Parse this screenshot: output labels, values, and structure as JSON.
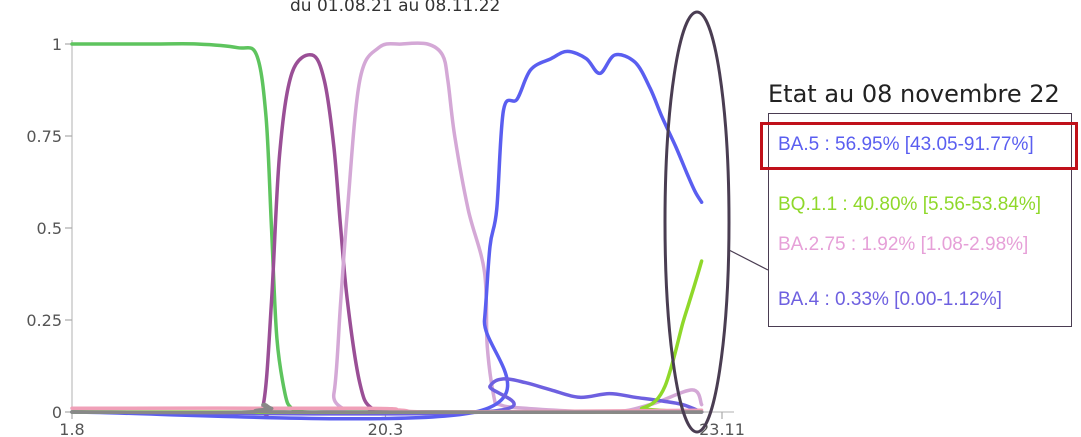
{
  "chart_data": {
    "type": "line",
    "title": "",
    "subtitle": "du 01.08.21 au 08.11.22",
    "xlabel": "",
    "ylabel": "",
    "x_ticks": [
      "1.8",
      "20.3",
      "23.11"
    ],
    "y_ticks": [
      "0",
      "0.25",
      "0.5",
      "0.75",
      "1"
    ],
    "ylim": [
      0,
      1
    ],
    "xlim": [
      "2021-08-01",
      "2022-11-23"
    ],
    "grid": false,
    "series": [
      {
        "color": "#5ec45e",
        "x": [
          "2021-08-01",
          "2021-09-01",
          "2021-10-01",
          "2021-11-01",
          "2021-12-01",
          "2021-12-15",
          "2021-12-22",
          "2021-12-26",
          "2021-12-30",
          "2022-01-05",
          "2022-01-10",
          "2022-01-20",
          "2022-02-10",
          "2022-03-20",
          "2022-06-01",
          "2022-09-01",
          "2022-11-08"
        ],
        "y": [
          1,
          1,
          1,
          1,
          0.99,
          0.97,
          0.8,
          0.5,
          0.2,
          0.05,
          0.01,
          0,
          0,
          0,
          0,
          0,
          0
        ]
      },
      {
        "color": "#9a4f96",
        "x": [
          "2021-08-01",
          "2021-12-10",
          "2021-12-20",
          "2021-12-26",
          "2022-01-01",
          "2022-01-10",
          "2022-01-25",
          "2022-02-03",
          "2022-02-10",
          "2022-02-15",
          "2022-02-20",
          "2022-03-01",
          "2022-03-10",
          "2022-04-01",
          "2022-11-08"
        ],
        "y": [
          0,
          0,
          0.02,
          0.3,
          0.7,
          0.92,
          0.97,
          0.9,
          0.72,
          0.5,
          0.3,
          0.08,
          0.01,
          0,
          0
        ]
      },
      {
        "color": "#d4a8d6",
        "x": [
          "2021-08-01",
          "2022-02-01",
          "2022-02-10",
          "2022-02-15",
          "2022-02-20",
          "2022-03-01",
          "2022-03-15",
          "2022-04-01",
          "2022-04-20",
          "2022-05-01",
          "2022-05-05",
          "2022-05-10",
          "2022-05-20",
          "2022-06-01",
          "2022-06-03",
          "2022-06-08",
          "2022-06-12",
          "2022-07-01",
          "2022-09-01",
          "2022-10-01",
          "2022-11-01",
          "2022-11-08"
        ],
        "y": [
          0,
          0,
          0.05,
          0.3,
          0.55,
          0.9,
          0.99,
          1,
          1,
          0.97,
          0.9,
          0.75,
          0.55,
          0.38,
          0.18,
          0.04,
          0.02,
          0.01,
          0,
          0.02,
          0.06,
          0.02
        ]
      },
      {
        "color": "#5a5ef0",
        "x": [
          "2021-08-01",
          "2022-05-25",
          "2022-06-01",
          "2022-06-05",
          "2022-06-10",
          "2022-06-15",
          "2022-06-25",
          "2022-07-05",
          "2022-07-20",
          "2022-08-01",
          "2022-08-15",
          "2022-08-25",
          "2022-09-05",
          "2022-09-20",
          "2022-10-01",
          "2022-10-10",
          "2022-10-20",
          "2022-10-28",
          "2022-11-03",
          "2022-11-08"
        ],
        "y": [
          0,
          0,
          0.25,
          0.45,
          0.55,
          0.82,
          0.85,
          0.93,
          0.96,
          0.98,
          0.96,
          0.92,
          0.97,
          0.95,
          0.88,
          0.8,
          0.72,
          0.65,
          0.6,
          0.57
        ]
      },
      {
        "color": "#6e60e0",
        "x": [
          "2021-08-01",
          "2022-05-30",
          "2022-06-05",
          "2022-06-15",
          "2022-07-01",
          "2022-07-20",
          "2022-08-10",
          "2022-09-01",
          "2022-09-20",
          "2022-10-10",
          "2022-10-25",
          "2022-11-08"
        ],
        "y": [
          0,
          0,
          0.07,
          0.09,
          0.08,
          0.06,
          0.04,
          0.05,
          0.04,
          0.03,
          0.02,
          0
        ]
      },
      {
        "color": "#8fd82a",
        "x": [
          "2021-08-01",
          "2022-09-10",
          "2022-09-25",
          "2022-10-05",
          "2022-10-12",
          "2022-10-18",
          "2022-10-25",
          "2022-10-30",
          "2022-11-04",
          "2022-11-08"
        ],
        "y": [
          0,
          0,
          0.01,
          0.03,
          0.07,
          0.14,
          0.24,
          0.3,
          0.36,
          0.41
        ]
      },
      {
        "color": "#f0a0b8",
        "x": [
          "2021-08-01",
          "2022-03-01",
          "2022-04-01",
          "2022-05-01",
          "2022-11-08"
        ],
        "y": [
          0.01,
          0.01,
          0.005,
          0,
          0.005
        ]
      },
      {
        "color": "#888888",
        "x": [
          "2021-08-01",
          "2021-12-10",
          "2021-12-20",
          "2021-12-26",
          "2022-01-10",
          "2022-11-08"
        ],
        "y": [
          0,
          0,
          0.02,
          0.01,
          0,
          0
        ]
      }
    ],
    "annotations": {
      "state_title": "Etat au 08 novembre 22",
      "entries": [
        {
          "text": "BA.5 : 56.95% [43.05-91.77%]",
          "color": "#5a5ef0",
          "highlighted": true
        },
        {
          "text": "BQ.1.1 : 40.80% [5.56-53.84%]",
          "color": "#8fd82a"
        },
        {
          "text": "BA.2.75 : 1.92% [1.08-2.98%]",
          "color": "#e6a0d8"
        },
        {
          "text": "BA.4 : 0.33% [0.00-1.12%]",
          "color": "#6e60e0"
        }
      ],
      "highlight_color": "#c0101a",
      "ellipse_color": "#4a3d52"
    }
  }
}
